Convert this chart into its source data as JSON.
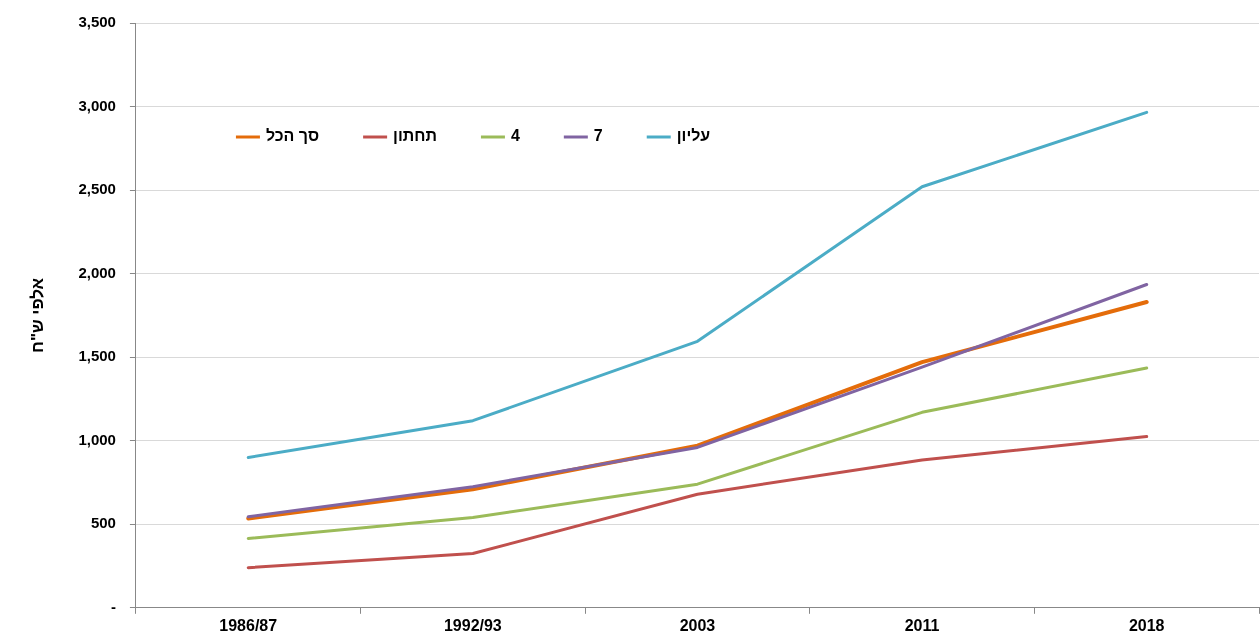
{
  "chart_data": {
    "type": "line",
    "ylabel": "אלפי ש\"ח",
    "categories": [
      "1986/87",
      "1992/93",
      "2003",
      "2011",
      "2018"
    ],
    "series": [
      {
        "name": "סך הכל",
        "color": "#e46c0a",
        "values": [
          535,
          710,
          970,
          1470,
          1830
        ]
      },
      {
        "name": "תחתון",
        "color": "#c0504d",
        "values": [
          240,
          325,
          680,
          885,
          1025
        ]
      },
      {
        "name": "4",
        "color": "#9bbb59",
        "values": [
          415,
          540,
          740,
          1170,
          1435
        ]
      },
      {
        "name": "7",
        "color": "#8064a2",
        "values": [
          545,
          725,
          960,
          1440,
          1935
        ]
      },
      {
        "name": "עליון",
        "color": "#4bacc6",
        "values": [
          900,
          1120,
          1595,
          2520,
          2965
        ]
      }
    ],
    "ylim": [
      0,
      3500
    ],
    "yticks": [
      {
        "value": 0,
        "label": "-"
      },
      500,
      {
        "value": 1000,
        "label": "1,000"
      },
      {
        "value": 1500,
        "label": "1,500"
      },
      {
        "value": 2000,
        "label": "2,000"
      },
      {
        "value": 2500,
        "label": "2,500"
      },
      {
        "value": 3000,
        "label": "3,000"
      },
      {
        "value": 3500,
        "label": "3,500"
      }
    ],
    "grid": "y",
    "legend": "top left",
    "marker": "none",
    "line_style": "solid"
  }
}
